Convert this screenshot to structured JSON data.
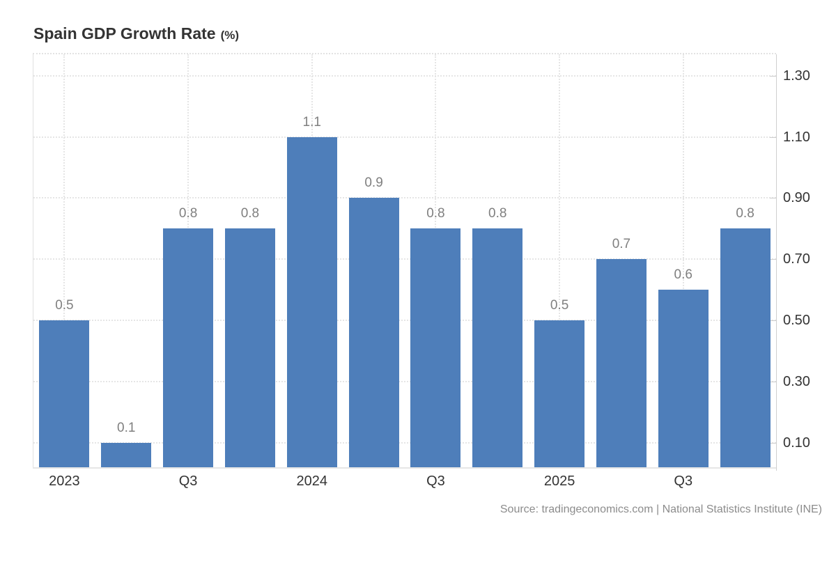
{
  "title": {
    "text": "Spain GDP Growth Rate",
    "unit": "(%)"
  },
  "source": "Source: tradingeconomics.com | National Statistics Institute (INE)",
  "colors": {
    "bar": "#4e7eba",
    "grid_dotted": "#e5e5e5",
    "plot_border": "#e0e0e0",
    "axis_line": "#cfcfcf",
    "axis_label": "#333333",
    "value_label": "#7f7f7f",
    "title": "#333333",
    "source": "#8c8c8c",
    "background": "#ffffff"
  },
  "chart_data": {
    "type": "bar",
    "title": "Spain GDP Growth Rate (%)",
    "x_labels": [
      "2023",
      "",
      "Q3",
      "",
      "2024",
      "",
      "Q3",
      "",
      "2025",
      "",
      "Q3",
      ""
    ],
    "values": [
      0.5,
      0.1,
      0.8,
      0.8,
      1.1,
      0.9,
      0.8,
      0.8,
      0.5,
      0.7,
      0.6,
      0.8
    ],
    "value_labels": [
      "0.5",
      "0.1",
      "0.8",
      "0.8",
      "1.1",
      "0.9",
      "0.8",
      "0.8",
      "0.5",
      "0.7",
      "0.6",
      "0.8"
    ],
    "y_ticks": [
      0.1,
      0.3,
      0.5,
      0.7,
      0.9,
      1.1,
      1.3
    ],
    "y_tick_labels": [
      "0.10",
      "0.30",
      "0.50",
      "0.70",
      "0.90",
      "1.10",
      "1.30"
    ],
    "ylim": [
      0.02,
      1.37
    ],
    "y_axis_side": "right",
    "grid": true,
    "legend": false,
    "xlabel": "",
    "ylabel": "%"
  }
}
